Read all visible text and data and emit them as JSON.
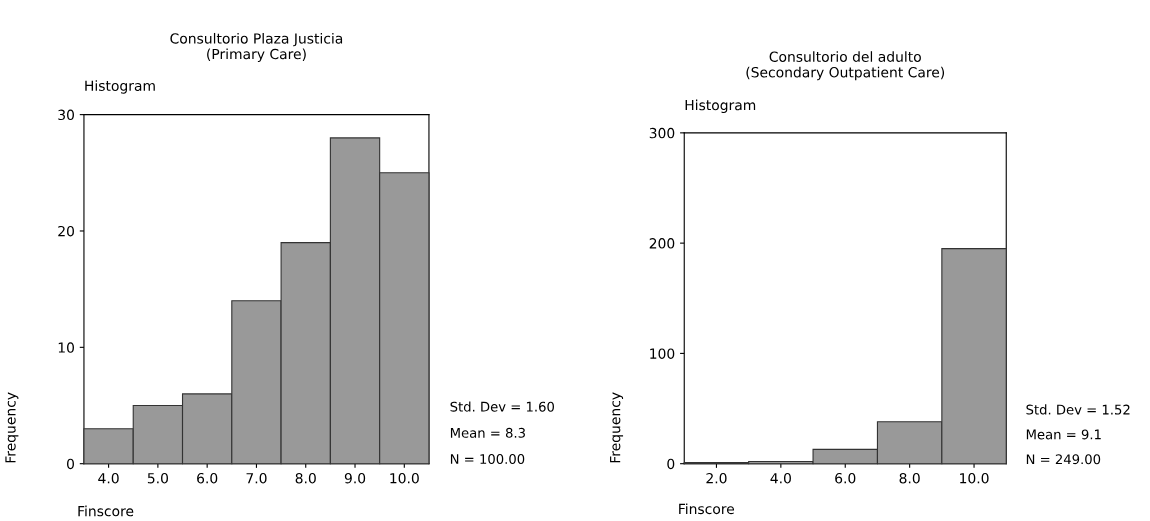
{
  "chart_data": [
    {
      "type": "histogram",
      "title": "Consultorio Plaza Justicia\n(Primary Care)",
      "xlabel": "Finscore",
      "ylabel": "Frequency",
      "color": "#999999",
      "bins": [
        3.5,
        4.5,
        5.5,
        6.5,
        7.5,
        8.5,
        9.5,
        10.5
      ],
      "values": [
        3,
        5,
        6,
        14,
        19,
        28,
        25
      ],
      "xlim": [
        3.5,
        10.5
      ],
      "xticks": [
        {
          "value": 4,
          "label": "4.0"
        },
        {
          "value": 5,
          "label": "5.0"
        },
        {
          "value": 6,
          "label": "6.0"
        },
        {
          "value": 7,
          "label": "7.0"
        },
        {
          "value": 8,
          "label": "8.0"
        },
        {
          "value": 9,
          "label": "9.0"
        },
        {
          "value": 10,
          "label": "10.0"
        }
      ],
      "ylim": [
        0,
        30
      ],
      "yticks": [
        0,
        10,
        20,
        30
      ],
      "grid": false,
      "legend": false,
      "annotations": [
        "Histogram",
        "Std. Dev = 1.60",
        "Mean = 8.3",
        "N = 100.00"
      ]
    },
    {
      "type": "histogram",
      "title": "Consultorio del adulto\n(Secondary Outpatient Care)",
      "xlabel": "Finscore",
      "ylabel": "Frequency",
      "color": "#999999",
      "bins": [
        1,
        3,
        5,
        7,
        9,
        11
      ],
      "values": [
        1,
        2,
        13,
        38,
        195
      ],
      "xlim": [
        1,
        11
      ],
      "xticks": [
        {
          "value": 2,
          "label": "2.0"
        },
        {
          "value": 4,
          "label": "4.0"
        },
        {
          "value": 6,
          "label": "6.0"
        },
        {
          "value": 8,
          "label": "8.0"
        },
        {
          "value": 10,
          "label": "10.0"
        }
      ],
      "ylim": [
        0,
        300
      ],
      "yticks": [
        0,
        100,
        200,
        300
      ],
      "grid": false,
      "legend": false,
      "annotations": [
        "Histogram",
        "Std. Dev = 1.52",
        "Mean = 9.1",
        "N = 249.00"
      ]
    }
  ]
}
